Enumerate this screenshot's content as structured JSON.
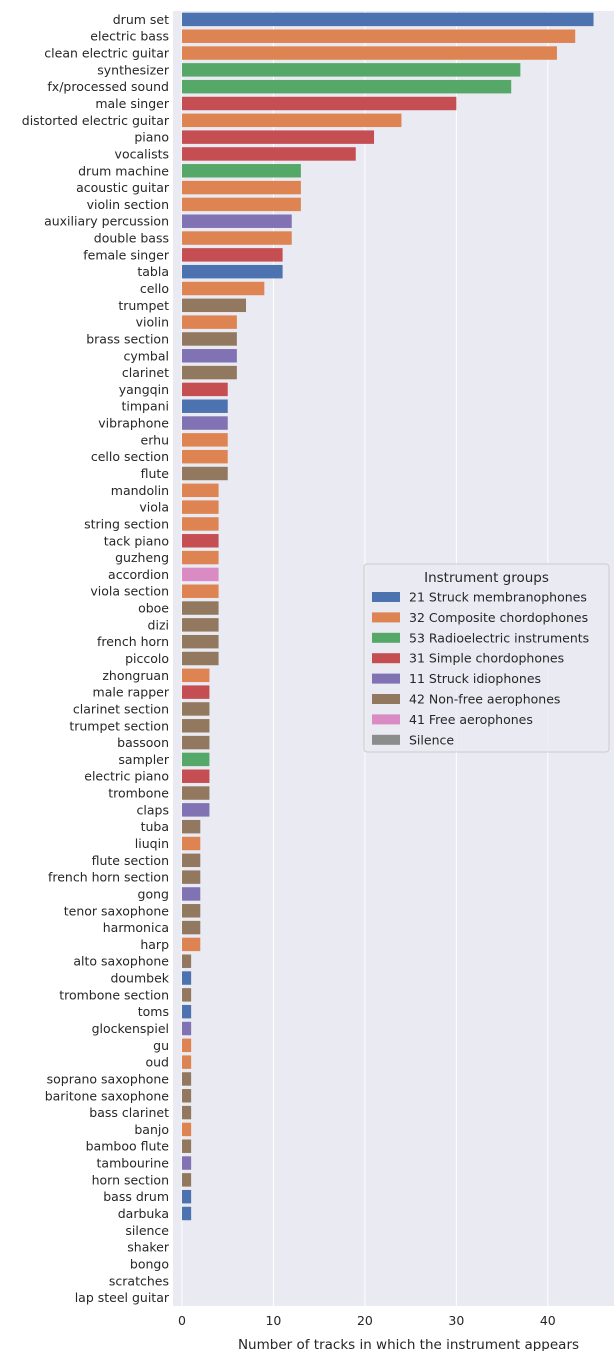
{
  "chart_data": {
    "type": "bar",
    "orientation": "horizontal",
    "xlabel": "Number of tracks in which the instrument appears",
    "xlim": [
      0,
      47
    ],
    "xticks": [
      0,
      10,
      20,
      30,
      40
    ],
    "grid": true,
    "legend_placement": "center-right",
    "legend_title": "Instrument groups",
    "groups": [
      {
        "key": "g21",
        "label": "21 Struck membranophones",
        "color": "#4c72b0"
      },
      {
        "key": "g32",
        "label": "32 Composite chordophones",
        "color": "#dd8452"
      },
      {
        "key": "g53",
        "label": "53 Radioelectric instruments",
        "color": "#55a868"
      },
      {
        "key": "g31",
        "label": "31 Simple chordophones",
        "color": "#c44e52"
      },
      {
        "key": "g11",
        "label": "11 Struck idiophones",
        "color": "#8172b3"
      },
      {
        "key": "g42",
        "label": "42 Non-free aerophones",
        "color": "#937860"
      },
      {
        "key": "g41",
        "label": "41 Free aerophones",
        "color": "#da8bc3"
      },
      {
        "key": "gsil",
        "label": "Silence",
        "color": "#8c8c8c"
      }
    ],
    "bars": [
      {
        "category": "drum set",
        "value": 45,
        "group": "g21"
      },
      {
        "category": "electric bass",
        "value": 43,
        "group": "g32"
      },
      {
        "category": "clean electric guitar",
        "value": 41,
        "group": "g32"
      },
      {
        "category": "synthesizer",
        "value": 37,
        "group": "g53"
      },
      {
        "category": "fx/processed sound",
        "value": 36,
        "group": "g53"
      },
      {
        "category": "male singer",
        "value": 30,
        "group": "g31"
      },
      {
        "category": "distorted electric guitar",
        "value": 24,
        "group": "g32"
      },
      {
        "category": "piano",
        "value": 21,
        "group": "g31"
      },
      {
        "category": "vocalists",
        "value": 19,
        "group": "g31"
      },
      {
        "category": "drum machine",
        "value": 13,
        "group": "g53"
      },
      {
        "category": "acoustic guitar",
        "value": 13,
        "group": "g32"
      },
      {
        "category": "violin section",
        "value": 13,
        "group": "g32"
      },
      {
        "category": "auxiliary percussion",
        "value": 12,
        "group": "g11"
      },
      {
        "category": "double bass",
        "value": 12,
        "group": "g32"
      },
      {
        "category": "female singer",
        "value": 11,
        "group": "g31"
      },
      {
        "category": "tabla",
        "value": 11,
        "group": "g21"
      },
      {
        "category": "cello",
        "value": 9,
        "group": "g32"
      },
      {
        "category": "trumpet",
        "value": 7,
        "group": "g42"
      },
      {
        "category": "violin",
        "value": 6,
        "group": "g32"
      },
      {
        "category": "brass section",
        "value": 6,
        "group": "g42"
      },
      {
        "category": "cymbal",
        "value": 6,
        "group": "g11"
      },
      {
        "category": "clarinet",
        "value": 6,
        "group": "g42"
      },
      {
        "category": "yangqin",
        "value": 5,
        "group": "g31"
      },
      {
        "category": "timpani",
        "value": 5,
        "group": "g21"
      },
      {
        "category": "vibraphone",
        "value": 5,
        "group": "g11"
      },
      {
        "category": "erhu",
        "value": 5,
        "group": "g32"
      },
      {
        "category": "cello section",
        "value": 5,
        "group": "g32"
      },
      {
        "category": "flute",
        "value": 5,
        "group": "g42"
      },
      {
        "category": "mandolin",
        "value": 4,
        "group": "g32"
      },
      {
        "category": "viola",
        "value": 4,
        "group": "g32"
      },
      {
        "category": "string section",
        "value": 4,
        "group": "g32"
      },
      {
        "category": "tack piano",
        "value": 4,
        "group": "g31"
      },
      {
        "category": "guzheng",
        "value": 4,
        "group": "g32"
      },
      {
        "category": "accordion",
        "value": 4,
        "group": "g41"
      },
      {
        "category": "viola section",
        "value": 4,
        "group": "g32"
      },
      {
        "category": "oboe",
        "value": 4,
        "group": "g42"
      },
      {
        "category": "dizi",
        "value": 4,
        "group": "g42"
      },
      {
        "category": "french horn",
        "value": 4,
        "group": "g42"
      },
      {
        "category": "piccolo",
        "value": 4,
        "group": "g42"
      },
      {
        "category": "zhongruan",
        "value": 3,
        "group": "g32"
      },
      {
        "category": "male rapper",
        "value": 3,
        "group": "g31"
      },
      {
        "category": "clarinet section",
        "value": 3,
        "group": "g42"
      },
      {
        "category": "trumpet section",
        "value": 3,
        "group": "g42"
      },
      {
        "category": "bassoon",
        "value": 3,
        "group": "g42"
      },
      {
        "category": "sampler",
        "value": 3,
        "group": "g53"
      },
      {
        "category": "electric piano",
        "value": 3,
        "group": "g31"
      },
      {
        "category": "trombone",
        "value": 3,
        "group": "g42"
      },
      {
        "category": "claps",
        "value": 3,
        "group": "g11"
      },
      {
        "category": "tuba",
        "value": 2,
        "group": "g42"
      },
      {
        "category": "liuqin",
        "value": 2,
        "group": "g32"
      },
      {
        "category": "flute section",
        "value": 2,
        "group": "g42"
      },
      {
        "category": "french horn section",
        "value": 2,
        "group": "g42"
      },
      {
        "category": "gong",
        "value": 2,
        "group": "g11"
      },
      {
        "category": "tenor saxophone",
        "value": 2,
        "group": "g42"
      },
      {
        "category": "harmonica",
        "value": 2,
        "group": "g42"
      },
      {
        "category": "harp",
        "value": 2,
        "group": "g32"
      },
      {
        "category": "alto saxophone",
        "value": 1,
        "group": "g42"
      },
      {
        "category": "doumbek",
        "value": 1,
        "group": "g21"
      },
      {
        "category": "trombone section",
        "value": 1,
        "group": "g42"
      },
      {
        "category": "toms",
        "value": 1,
        "group": "g21"
      },
      {
        "category": "glockenspiel",
        "value": 1,
        "group": "g11"
      },
      {
        "category": "gu",
        "value": 1,
        "group": "g32"
      },
      {
        "category": "oud",
        "value": 1,
        "group": "g32"
      },
      {
        "category": "soprano saxophone",
        "value": 1,
        "group": "g42"
      },
      {
        "category": "baritone saxophone",
        "value": 1,
        "group": "g42"
      },
      {
        "category": "bass clarinet",
        "value": 1,
        "group": "g42"
      },
      {
        "category": "banjo",
        "value": 1,
        "group": "g32"
      },
      {
        "category": "bamboo flute",
        "value": 1,
        "group": "g42"
      },
      {
        "category": "tambourine",
        "value": 1,
        "group": "g11"
      },
      {
        "category": "horn section",
        "value": 1,
        "group": "g42"
      },
      {
        "category": "bass drum",
        "value": 1,
        "group": "g21"
      },
      {
        "category": "darbuka",
        "value": 1,
        "group": "g21"
      },
      {
        "category": "silence",
        "value": 0,
        "group": "gsil"
      },
      {
        "category": "shaker",
        "value": 0,
        "group": "g11"
      },
      {
        "category": "bongo",
        "value": 0,
        "group": "g21"
      },
      {
        "category": "scratches",
        "value": 0,
        "group": "g32"
      },
      {
        "category": "lap steel guitar",
        "value": 0,
        "group": "g32"
      }
    ]
  }
}
